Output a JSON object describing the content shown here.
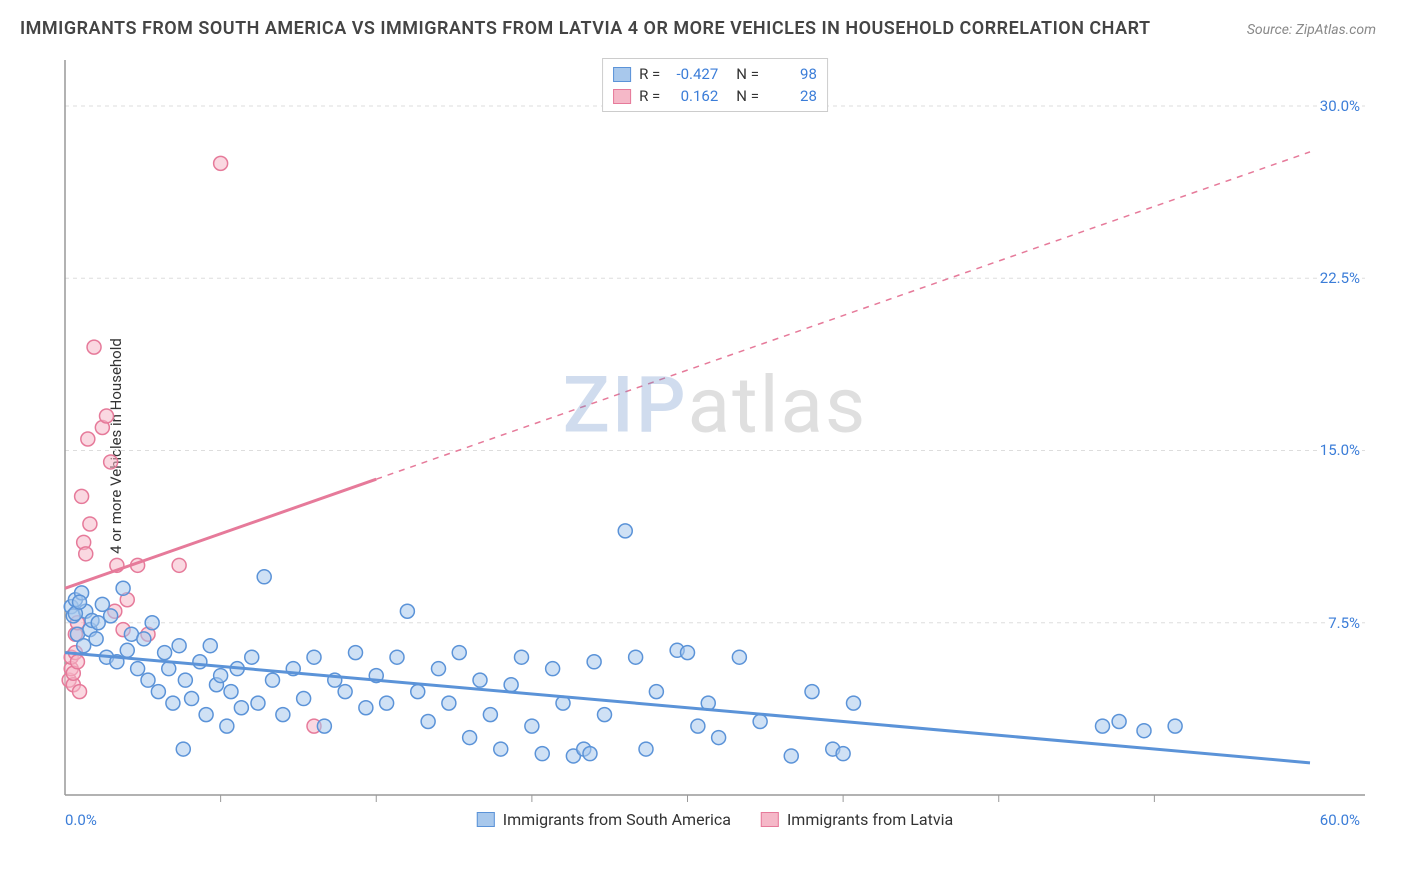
{
  "title": "IMMIGRANTS FROM SOUTH AMERICA VS IMMIGRANTS FROM LATVIA 4 OR MORE VEHICLES IN HOUSEHOLD CORRELATION CHART",
  "source": "Source: ZipAtlas.com",
  "yaxis_label": "4 or more Vehicles in Household",
  "watermark_1": "ZIP",
  "watermark_2": "atlas",
  "chart": {
    "type": "scatter",
    "xlim": [
      0,
      60
    ],
    "ylim": [
      0,
      32
    ],
    "x_ticks": [
      0,
      60
    ],
    "x_tick_labels": [
      "0.0%",
      "60.0%"
    ],
    "x_minor_ticks": [
      7.5,
      15,
      22.5,
      30,
      37.5,
      45,
      52.5
    ],
    "y_ticks": [
      7.5,
      15,
      22.5,
      30
    ],
    "y_tick_labels": [
      "7.5%",
      "15.0%",
      "22.5%",
      "30.0%"
    ],
    "grid_color": "#dddddd",
    "axis_color": "#999999",
    "background_color": "#ffffff",
    "marker_radius": 7,
    "marker_stroke_width": 1.5,
    "trend_line_width": 3,
    "series": [
      {
        "name": "Immigrants from South America",
        "fill_color": "#a8c8ec",
        "stroke_color": "#5b93d8",
        "fill_opacity": 0.55,
        "R": "-0.427",
        "N": "98",
        "trend": {
          "x1": 0,
          "y1": 6.2,
          "x2": 60,
          "y2": 1.4,
          "dashed": false
        },
        "points": [
          [
            0.3,
            8.2
          ],
          [
            0.4,
            7.8
          ],
          [
            0.5,
            8.5
          ],
          [
            0.6,
            7.0
          ],
          [
            0.8,
            8.8
          ],
          [
            0.9,
            6.5
          ],
          [
            1.0,
            8.0
          ],
          [
            1.2,
            7.2
          ],
          [
            1.3,
            7.6
          ],
          [
            1.5,
            6.8
          ],
          [
            1.6,
            7.5
          ],
          [
            1.8,
            8.3
          ],
          [
            2.0,
            6.0
          ],
          [
            2.2,
            7.8
          ],
          [
            2.5,
            5.8
          ],
          [
            2.8,
            9.0
          ],
          [
            3.0,
            6.3
          ],
          [
            3.2,
            7.0
          ],
          [
            3.5,
            5.5
          ],
          [
            3.8,
            6.8
          ],
          [
            4.0,
            5.0
          ],
          [
            4.2,
            7.5
          ],
          [
            4.5,
            4.5
          ],
          [
            4.8,
            6.2
          ],
          [
            5.0,
            5.5
          ],
          [
            5.2,
            4.0
          ],
          [
            5.5,
            6.5
          ],
          [
            5.7,
            2.0
          ],
          [
            5.8,
            5.0
          ],
          [
            6.1,
            4.2
          ],
          [
            6.5,
            5.8
          ],
          [
            6.8,
            3.5
          ],
          [
            7.0,
            6.5
          ],
          [
            7.3,
            4.8
          ],
          [
            7.5,
            5.2
          ],
          [
            7.8,
            3.0
          ],
          [
            8.0,
            4.5
          ],
          [
            8.3,
            5.5
          ],
          [
            8.5,
            3.8
          ],
          [
            9.0,
            6.0
          ],
          [
            9.3,
            4.0
          ],
          [
            9.6,
            9.5
          ],
          [
            10.0,
            5.0
          ],
          [
            10.5,
            3.5
          ],
          [
            11.0,
            5.5
          ],
          [
            11.5,
            4.2
          ],
          [
            12.0,
            6.0
          ],
          [
            12.5,
            3.0
          ],
          [
            13.0,
            5.0
          ],
          [
            13.5,
            4.5
          ],
          [
            14.0,
            6.2
          ],
          [
            14.5,
            3.8
          ],
          [
            15.0,
            5.2
          ],
          [
            15.5,
            4.0
          ],
          [
            16.0,
            6.0
          ],
          [
            16.5,
            8.0
          ],
          [
            17.0,
            4.5
          ],
          [
            17.5,
            3.2
          ],
          [
            18.0,
            5.5
          ],
          [
            18.5,
            4.0
          ],
          [
            19.0,
            6.2
          ],
          [
            19.5,
            2.5
          ],
          [
            20.0,
            5.0
          ],
          [
            20.5,
            3.5
          ],
          [
            21.0,
            2.0
          ],
          [
            21.5,
            4.8
          ],
          [
            22.0,
            6.0
          ],
          [
            22.5,
            3.0
          ],
          [
            23.0,
            1.8
          ],
          [
            23.5,
            5.5
          ],
          [
            24.0,
            4.0
          ],
          [
            24.5,
            1.7
          ],
          [
            25.0,
            2.0
          ],
          [
            25.3,
            1.8
          ],
          [
            25.5,
            5.8
          ],
          [
            26.0,
            3.5
          ],
          [
            27.0,
            11.5
          ],
          [
            27.5,
            6.0
          ],
          [
            28.0,
            2.0
          ],
          [
            28.5,
            4.5
          ],
          [
            29.5,
            6.3
          ],
          [
            30.0,
            6.2
          ],
          [
            30.5,
            3.0
          ],
          [
            31.0,
            4.0
          ],
          [
            31.5,
            2.5
          ],
          [
            32.5,
            6.0
          ],
          [
            33.5,
            3.2
          ],
          [
            35.0,
            1.7
          ],
          [
            36.0,
            4.5
          ],
          [
            37.0,
            2.0
          ],
          [
            37.5,
            1.8
          ],
          [
            38.0,
            4.0
          ],
          [
            50.0,
            3.0
          ],
          [
            50.8,
            3.2
          ],
          [
            52.0,
            2.8
          ],
          [
            53.5,
            3.0
          ],
          [
            0.5,
            7.9
          ],
          [
            0.7,
            8.4
          ]
        ]
      },
      {
        "name": "Immigrants from Latvia",
        "fill_color": "#f5b8c8",
        "stroke_color": "#e67a9a",
        "fill_opacity": 0.55,
        "R": "0.162",
        "N": "28",
        "trend": {
          "x1": 0,
          "y1": 9.0,
          "x2": 60,
          "y2": 28.0,
          "dashed_from_x": 15
        },
        "points": [
          [
            0.2,
            5.0
          ],
          [
            0.3,
            5.5
          ],
          [
            0.3,
            6.0
          ],
          [
            0.4,
            4.8
          ],
          [
            0.4,
            5.3
          ],
          [
            0.5,
            7.0
          ],
          [
            0.5,
            6.2
          ],
          [
            0.6,
            7.5
          ],
          [
            0.6,
            5.8
          ],
          [
            0.7,
            4.5
          ],
          [
            0.8,
            13.0
          ],
          [
            0.9,
            11.0
          ],
          [
            1.0,
            10.5
          ],
          [
            1.1,
            15.5
          ],
          [
            1.2,
            11.8
          ],
          [
            1.4,
            19.5
          ],
          [
            1.8,
            16.0
          ],
          [
            2.0,
            16.5
          ],
          [
            2.2,
            14.5
          ],
          [
            2.4,
            8.0
          ],
          [
            2.5,
            10.0
          ],
          [
            2.8,
            7.2
          ],
          [
            3.0,
            8.5
          ],
          [
            3.5,
            10.0
          ],
          [
            4.0,
            7.0
          ],
          [
            5.5,
            10.0
          ],
          [
            7.5,
            27.5
          ],
          [
            12.0,
            3.0
          ]
        ]
      }
    ]
  },
  "legend_top": {
    "r_label": "R =",
    "n_label": "N ="
  },
  "colors": {
    "tick_text": "#3b7dd8",
    "title_text": "#444444",
    "source_text": "#888888"
  }
}
